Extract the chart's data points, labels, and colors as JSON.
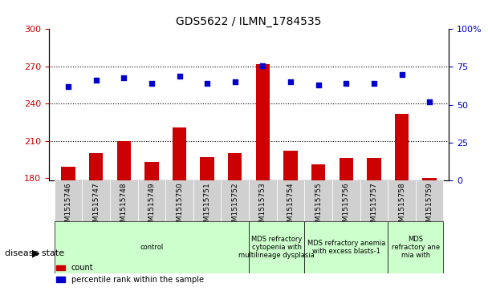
{
  "title": "GDS5622 / ILMN_1784535",
  "samples": [
    "GSM1515746",
    "GSM1515747",
    "GSM1515748",
    "GSM1515749",
    "GSM1515750",
    "GSM1515751",
    "GSM1515752",
    "GSM1515753",
    "GSM1515754",
    "GSM1515755",
    "GSM1515756",
    "GSM1515757",
    "GSM1515758",
    "GSM1515759"
  ],
  "counts": [
    189,
    200,
    210,
    193,
    221,
    197,
    200,
    272,
    202,
    191,
    196,
    196,
    232,
    180
  ],
  "percentile_ranks": [
    62,
    66,
    68,
    64,
    69,
    64,
    65,
    76,
    65,
    63,
    64,
    64,
    70,
    52
  ],
  "ylim_left": [
    178,
    300
  ],
  "ylim_right": [
    0,
    100
  ],
  "yticks_left": [
    180,
    210,
    240,
    270,
    300
  ],
  "yticks_right": [
    0,
    25,
    50,
    75,
    100
  ],
  "bar_color": "#cc0000",
  "dot_color": "#0000cc",
  "grid_color": "#000000",
  "bg_color": "#ffffff",
  "disease_groups": [
    {
      "label": "control",
      "start": 0,
      "end": 7,
      "color": "#ccffcc"
    },
    {
      "label": "MDS refractory\ncytopenia with\nmultilineage dysplasia",
      "start": 7,
      "end": 9,
      "color": "#ccffcc"
    },
    {
      "label": "MDS refractory anemia\nwith excess blasts-1",
      "start": 9,
      "end": 12,
      "color": "#ccffcc"
    },
    {
      "label": "MDS\nrefractory ane\nmia with",
      "start": 12,
      "end": 14,
      "color": "#ccffcc"
    }
  ],
  "disease_state_label": "disease state",
  "legend_count_label": "count",
  "legend_percentile_label": "percentile rank within the sample",
  "xlabel_color": "#cc0000",
  "ylabel_right_color": "#0000cc"
}
